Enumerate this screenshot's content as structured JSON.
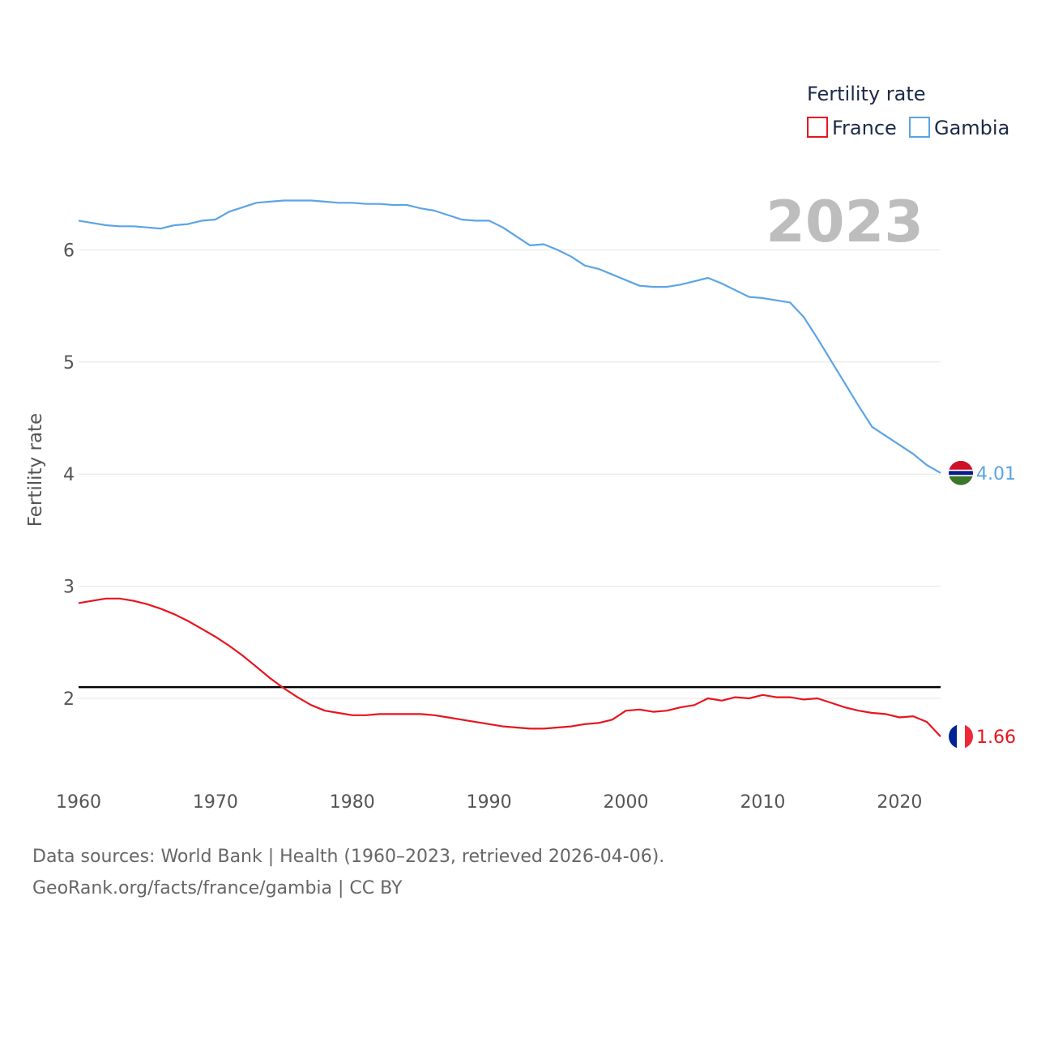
{
  "chart_data": {
    "type": "line",
    "title": "",
    "legend_title": "Fertility rate",
    "ylabel": "Fertility rate",
    "xlabel": "",
    "year_label": "2023",
    "xlim": [
      1960,
      2023
    ],
    "ylim": [
      1.4,
      6.9
    ],
    "x_ticks": [
      1960,
      1970,
      1980,
      1990,
      2000,
      2010,
      2020
    ],
    "y_ticks": [
      2,
      3,
      4,
      5,
      6
    ],
    "reference_line": {
      "value": 2.1,
      "color": "#000000"
    },
    "grid": true,
    "legend_position": "top-right",
    "x": [
      1960,
      1961,
      1962,
      1963,
      1964,
      1965,
      1966,
      1967,
      1968,
      1969,
      1970,
      1971,
      1972,
      1973,
      1974,
      1975,
      1976,
      1977,
      1978,
      1979,
      1980,
      1981,
      1982,
      1983,
      1984,
      1985,
      1986,
      1987,
      1988,
      1989,
      1990,
      1991,
      1992,
      1993,
      1994,
      1995,
      1996,
      1997,
      1998,
      1999,
      2000,
      2001,
      2002,
      2003,
      2004,
      2005,
      2006,
      2007,
      2008,
      2009,
      2010,
      2011,
      2012,
      2013,
      2014,
      2015,
      2016,
      2017,
      2018,
      2019,
      2020,
      2021,
      2022,
      2023
    ],
    "series": [
      {
        "name": "France",
        "color": "#e8141e",
        "end_value_label": "1.66",
        "flag": "france-flag-icon",
        "values": [
          2.85,
          2.87,
          2.89,
          2.89,
          2.87,
          2.84,
          2.8,
          2.75,
          2.69,
          2.62,
          2.55,
          2.47,
          2.38,
          2.28,
          2.18,
          2.09,
          2.01,
          1.94,
          1.89,
          1.87,
          1.85,
          1.85,
          1.86,
          1.86,
          1.86,
          1.86,
          1.85,
          1.83,
          1.81,
          1.79,
          1.77,
          1.75,
          1.74,
          1.73,
          1.73,
          1.74,
          1.75,
          1.77,
          1.78,
          1.81,
          1.89,
          1.9,
          1.88,
          1.89,
          1.92,
          1.94,
          2.0,
          1.98,
          2.01,
          2.0,
          2.03,
          2.01,
          2.01,
          1.99,
          2.0,
          1.96,
          1.92,
          1.89,
          1.87,
          1.86,
          1.83,
          1.84,
          1.79,
          1.66
        ]
      },
      {
        "name": "Gambia",
        "color": "#5ba4e5",
        "end_value_label": "4.01",
        "flag": "gambia-flag-icon",
        "values": [
          6.26,
          6.24,
          6.22,
          6.21,
          6.21,
          6.2,
          6.19,
          6.22,
          6.23,
          6.26,
          6.27,
          6.34,
          6.38,
          6.42,
          6.43,
          6.44,
          6.44,
          6.44,
          6.43,
          6.42,
          6.42,
          6.41,
          6.41,
          6.4,
          6.4,
          6.37,
          6.35,
          6.31,
          6.27,
          6.26,
          6.26,
          6.2,
          6.12,
          6.04,
          6.05,
          6.0,
          5.94,
          5.86,
          5.83,
          5.78,
          5.73,
          5.68,
          5.67,
          5.67,
          5.69,
          5.72,
          5.75,
          5.7,
          5.64,
          5.58,
          5.57,
          5.55,
          5.53,
          5.4,
          5.21,
          5.01,
          4.81,
          4.61,
          4.42,
          4.34,
          4.26,
          4.18,
          4.08,
          4.01
        ]
      }
    ]
  },
  "footer": {
    "source_line": "Data sources: World Bank | Health (1960–2023, retrieved 2026-04-06).",
    "credit_line": "GeoRank.org/facts/france/gambia | CC BY"
  }
}
